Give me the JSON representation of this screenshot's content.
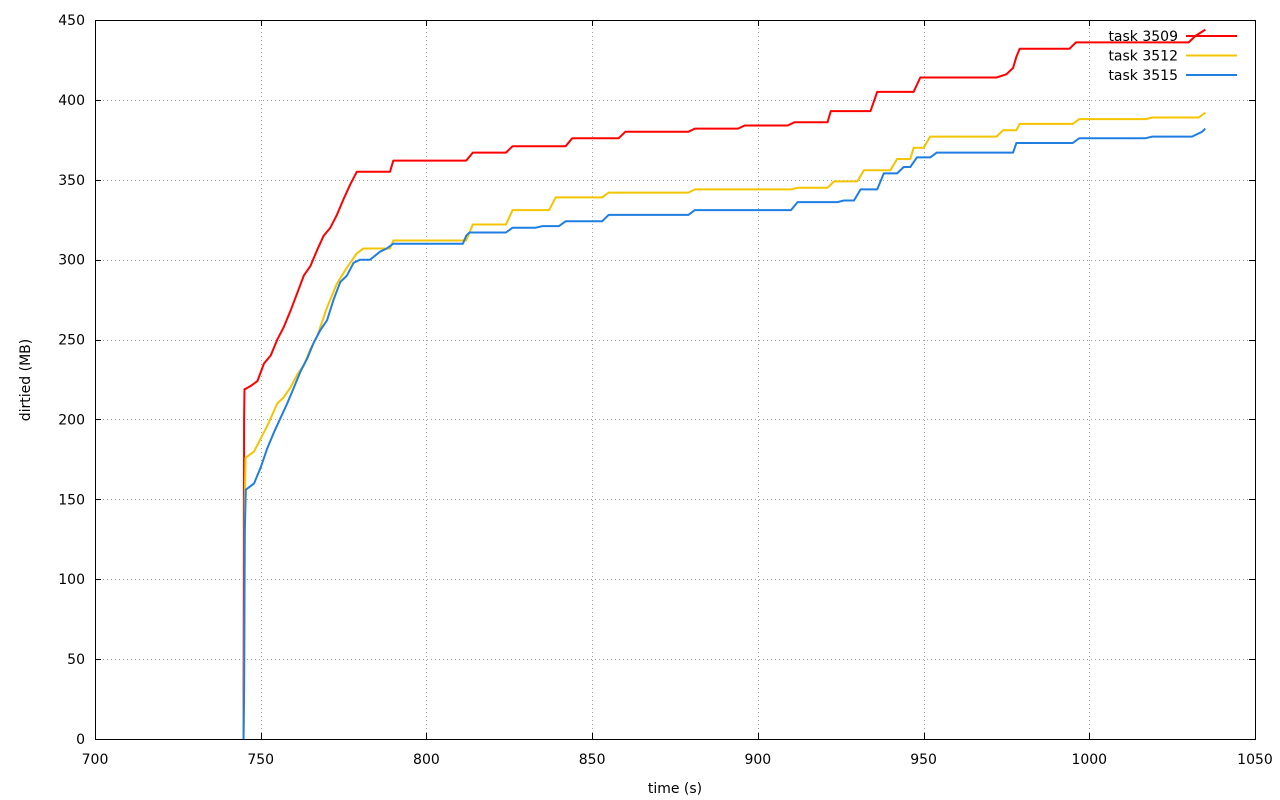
{
  "chart_data": {
    "type": "line",
    "title": "",
    "xlabel": "time (s)",
    "ylabel": "dirtied (MB)",
    "xlim": [
      700,
      1050
    ],
    "ylim": [
      0,
      450
    ],
    "xticks": [
      700,
      750,
      800,
      850,
      900,
      950,
      1000,
      1050
    ],
    "yticks": [
      0,
      50,
      100,
      150,
      200,
      250,
      300,
      350,
      400,
      450
    ],
    "grid": true,
    "legend_position": "top-right",
    "series": [
      {
        "name": "task 3509",
        "color": "#ff0000",
        "x": [
          744.8,
          744.9,
          745.0,
          745.1,
          745.3,
          747.0,
          749.0,
          751.0,
          753.0,
          755.0,
          757.0,
          759.0,
          761.0,
          763.0,
          765.0,
          767.0,
          769.0,
          771.0,
          773.0,
          775.0,
          777.0,
          779.0,
          789.0,
          790.0,
          812.0,
          814.0,
          824.0,
          826.0,
          842.0,
          844.0,
          858.0,
          860.0,
          879.0,
          881.0,
          894.0,
          896.0,
          909.0,
          911.0,
          921.0,
          922.0,
          934.0,
          936.0,
          947.0,
          949.0,
          972.0,
          975.0,
          977.0,
          978.0,
          979.0,
          994.0,
          996.0,
          1030.0,
          1032.0,
          1035.0
        ],
        "y": [
          0,
          90,
          200,
          219,
          219,
          221,
          224,
          235,
          240,
          250,
          258,
          268,
          279,
          290,
          296,
          306,
          315,
          320,
          328,
          338,
          347,
          355,
          355,
          362,
          362,
          367,
          367,
          371,
          371,
          376,
          376,
          380,
          380,
          382,
          382,
          384,
          384,
          386,
          386,
          393,
          393,
          405,
          405,
          414,
          414,
          416,
          420,
          427,
          432,
          432,
          436,
          436,
          440,
          444
        ]
      },
      {
        "name": "task 3512",
        "color": "#f5c400",
        "x": [
          744.8,
          745.0,
          745.2,
          745.4,
          748.0,
          750.0,
          752.0,
          755.0,
          757.0,
          759.0,
          761.0,
          763.0,
          765.0,
          767.0,
          770.0,
          773.0,
          776.0,
          779.0,
          781.0,
          789.0,
          790.0,
          812.0,
          814.0,
          824.0,
          826.0,
          837.0,
          839.0,
          853.0,
          855.0,
          879.0,
          881.0,
          910.0,
          912.0,
          921.0,
          923.0,
          930.0,
          932.0,
          940.0,
          942.0,
          946.0,
          947.0,
          950.0,
          952.0,
          972.0,
          974.0,
          978.0,
          979.0,
          995.0,
          997.0,
          1017.0,
          1019.0,
          1033.0,
          1035.0
        ],
        "y": [
          0,
          40,
          150,
          176,
          180,
          188,
          196,
          210,
          214,
          220,
          228,
          234,
          244,
          252,
          270,
          285,
          295,
          304,
          307,
          307,
          312,
          312,
          322,
          322,
          331,
          331,
          339,
          339,
          342,
          342,
          344,
          344,
          345,
          345,
          349,
          349,
          356,
          356,
          363,
          363,
          370,
          370,
          377,
          377,
          381,
          381,
          385,
          385,
          388,
          388,
          389,
          389,
          392
        ]
      },
      {
        "name": "task 3515",
        "color": "#1f7ee0",
        "x": [
          744.8,
          745.0,
          745.2,
          745.5,
          748.0,
          750.0,
          752.0,
          754.0,
          756.0,
          758.0,
          760.0,
          762.0,
          764.0,
          766.0,
          768.0,
          770.0,
          772.0,
          774.0,
          776.0,
          778.0,
          780.0,
          783.0,
          786.0,
          788.0,
          790.0,
          811.0,
          812.0,
          813.0,
          815.0,
          824.0,
          826.0,
          833.0,
          835.0,
          840.0,
          842.0,
          853.0,
          855.0,
          879.0,
          881.0,
          910.0,
          912.0,
          924.0,
          926.0,
          929.0,
          931.0,
          936.0,
          938.0,
          942.0,
          944.0,
          946.0,
          948.0,
          952.0,
          954.0,
          977.0,
          978.0,
          995.0,
          997.0,
          1017.0,
          1019.0,
          1031.0,
          1034.0,
          1035.0
        ],
        "y": [
          0,
          30,
          130,
          156,
          160,
          170,
          182,
          192,
          201,
          210,
          220,
          230,
          238,
          248,
          256,
          262,
          275,
          286,
          290,
          298,
          300,
          300,
          305,
          307,
          310,
          310,
          315,
          317,
          317,
          317,
          320,
          320,
          321,
          321,
          324,
          324,
          328,
          328,
          331,
          331,
          336,
          336,
          337,
          337,
          344,
          344,
          354,
          354,
          358,
          358,
          364,
          364,
          367,
          367,
          373,
          373,
          376,
          376,
          377,
          377,
          380,
          382
        ]
      }
    ]
  }
}
